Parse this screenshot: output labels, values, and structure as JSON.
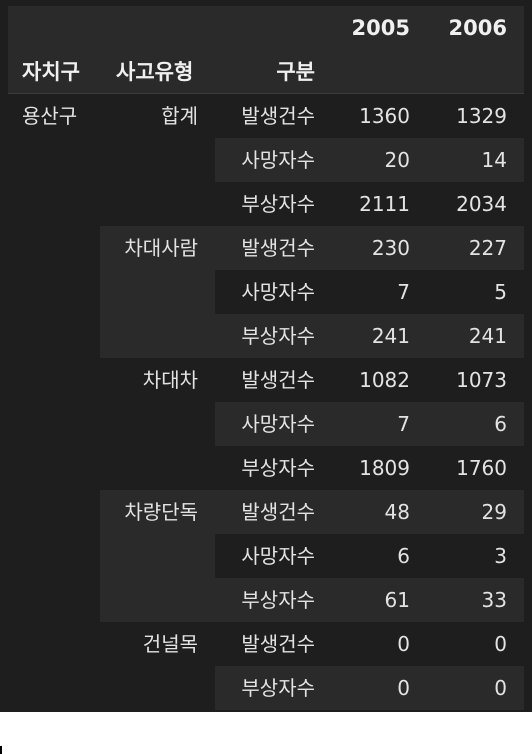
{
  "table": {
    "year_headers": [
      "2005",
      "2006"
    ],
    "index_headers": {
      "district": "자치구",
      "accident_type": "사고유형",
      "category": "구분"
    },
    "district": "용산구",
    "groups": [
      {
        "type": "합계",
        "rows": [
          {
            "category": "발생건수",
            "v2005": "1360",
            "v2006": "1329"
          },
          {
            "category": "사망자수",
            "v2005": "20",
            "v2006": "14"
          },
          {
            "category": "부상자수",
            "v2005": "2111",
            "v2006": "2034"
          }
        ]
      },
      {
        "type": "차대사람",
        "rows": [
          {
            "category": "발생건수",
            "v2005": "230",
            "v2006": "227"
          },
          {
            "category": "사망자수",
            "v2005": "7",
            "v2006": "5"
          },
          {
            "category": "부상자수",
            "v2005": "241",
            "v2006": "241"
          }
        ]
      },
      {
        "type": "차대차",
        "rows": [
          {
            "category": "발생건수",
            "v2005": "1082",
            "v2006": "1073"
          },
          {
            "category": "사망자수",
            "v2005": "7",
            "v2006": "6"
          },
          {
            "category": "부상자수",
            "v2005": "1809",
            "v2006": "1760"
          }
        ]
      },
      {
        "type": "차량단독",
        "rows": [
          {
            "category": "발생건수",
            "v2005": "48",
            "v2006": "29"
          },
          {
            "category": "사망자수",
            "v2005": "6",
            "v2006": "3"
          },
          {
            "category": "부상자수",
            "v2005": "61",
            "v2006": "33"
          }
        ]
      },
      {
        "type": "건널목",
        "rows": [
          {
            "category": "발생건수",
            "v2005": "0",
            "v2006": "0"
          },
          {
            "category": "부상자수",
            "v2005": "0",
            "v2006": "0"
          }
        ]
      }
    ],
    "colors": {
      "background": "#1e1e1e",
      "header": "#2a2a2a",
      "stripe": "#2a2a2a",
      "text": "#e3e3e3"
    }
  }
}
